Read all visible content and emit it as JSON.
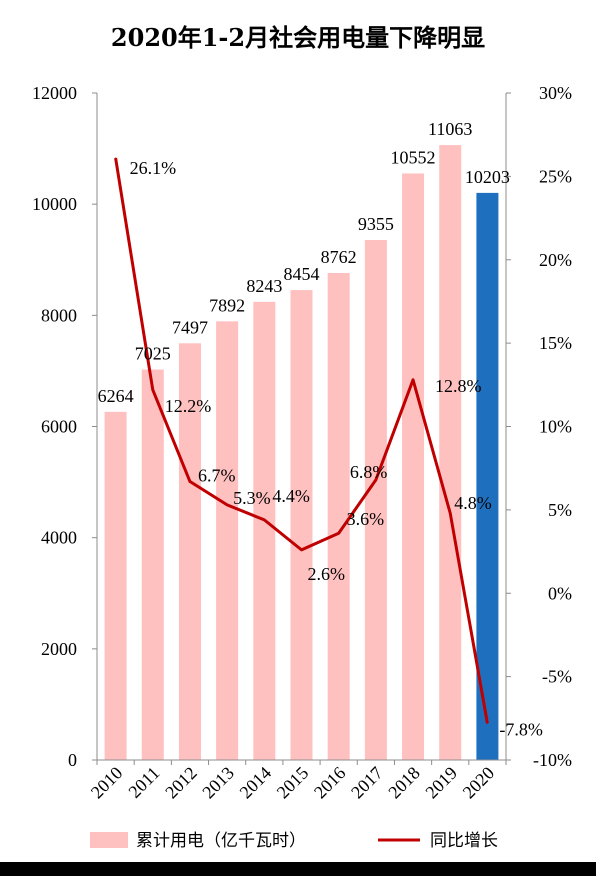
{
  "chart_data": {
    "type": "bar",
    "title": "2020年1-2月社会用电量下降明显",
    "categories": [
      "2010",
      "2011",
      "2012",
      "2013",
      "2014",
      "2015",
      "2016",
      "2017",
      "2018",
      "2019",
      "2020"
    ],
    "series": [
      {
        "name": "累计用电（亿千瓦时）",
        "type": "bar",
        "axis": "left",
        "values": [
          6264,
          7025,
          7497,
          7892,
          8243,
          8454,
          8762,
          9355,
          10552,
          11063,
          10203
        ],
        "labels": [
          "6264",
          "7025",
          "7497",
          "7892",
          "8243",
          "8454",
          "8762",
          "9355",
          "10552",
          "11063",
          "10203"
        ],
        "color": "#ffc0c0",
        "highlight_color": "#1f6fbf",
        "highlight_index": 10
      },
      {
        "name": "同比增长",
        "type": "line",
        "axis": "right",
        "values": [
          26.1,
          12.2,
          6.7,
          5.3,
          4.4,
          2.6,
          3.6,
          6.8,
          12.8,
          4.8,
          -7.8
        ],
        "labels": [
          "26.1%",
          "12.2%",
          "6.7%",
          "5.3%",
          "4.4%",
          "2.6%",
          "3.6%",
          "6.8%",
          "12.8%",
          "4.8%",
          "-7.8%"
        ],
        "color": "#c00000"
      }
    ],
    "y_left": {
      "min": 0,
      "max": 12000,
      "ticks": [
        "0",
        "2000",
        "4000",
        "6000",
        "8000",
        "10000",
        "12000"
      ]
    },
    "y_right": {
      "min": -10,
      "max": 30,
      "ticks": [
        "-10%",
        "-5%",
        "0%",
        "5%",
        "10%",
        "15%",
        "20%",
        "25%",
        "30%"
      ]
    },
    "grid": false,
    "legend_position": "bottom"
  }
}
